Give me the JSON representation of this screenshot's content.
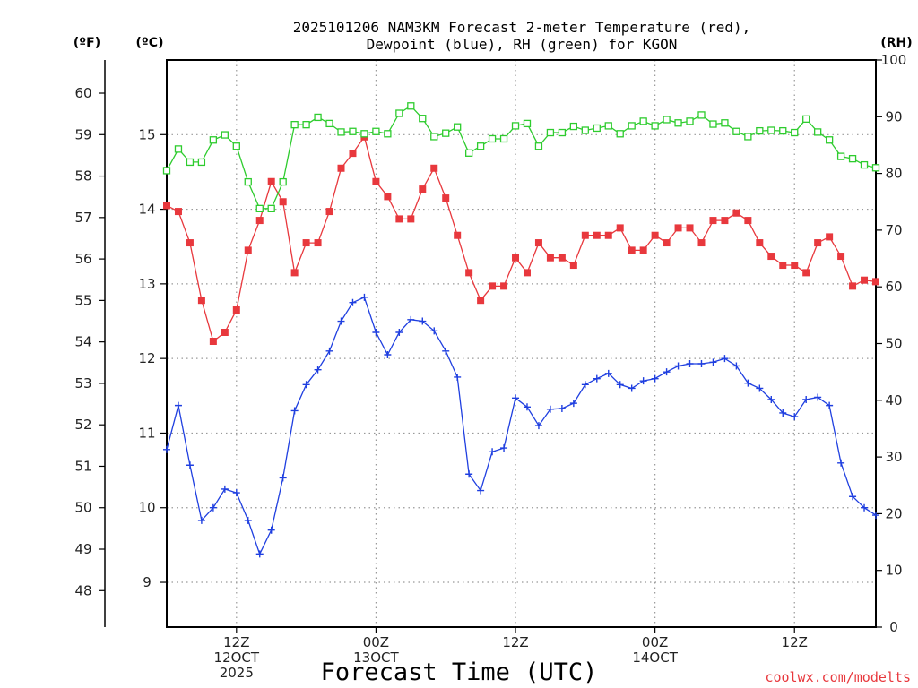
{
  "chart_data": {
    "type": "line",
    "title_line1": "2025101206 NAM3KM Forecast 2-meter Temperature (red),",
    "title_line2": "Dewpoint (blue), RH (green) for KGON",
    "xlabel": "Forecast Time (UTC)",
    "credit": "coolwx.com/modelts",
    "unit_f": "(ºF)",
    "unit_c": "(ºC)",
    "unit_rh": "(RH)",
    "x_unit": "forecast hour",
    "xlim": [
      0,
      61
    ],
    "ylim_c": [
      8.4,
      16.0
    ],
    "ylim_rh": [
      0,
      100
    ],
    "ylim_f": [
      47.12,
      60.8
    ],
    "yticks_f": [
      48,
      49,
      50,
      51,
      52,
      53,
      54,
      55,
      56,
      57,
      58,
      59,
      60
    ],
    "yticks_c": [
      9,
      10,
      11,
      12,
      13,
      14,
      15
    ],
    "yticks_rh": [
      0,
      10,
      20,
      30,
      40,
      50,
      60,
      70,
      80,
      90,
      100
    ],
    "xticks": [
      {
        "x": 6,
        "lines": [
          "12Z",
          "12OCT",
          "2025"
        ]
      },
      {
        "x": 18,
        "lines": [
          "00Z",
          "13OCT"
        ]
      },
      {
        "x": 30,
        "lines": [
          "12Z"
        ]
      },
      {
        "x": 42,
        "lines": [
          "00Z",
          "14OCT"
        ]
      },
      {
        "x": 54,
        "lines": [
          "12Z"
        ]
      }
    ],
    "colors": {
      "temperature": "#e8383d",
      "dewpoint": "#1f3fe0",
      "rh": "#2ecc2e",
      "grid": "#999999",
      "credit": "#e8383d"
    },
    "series": [
      {
        "name": "Temperature",
        "units": "C",
        "color": "#e8383d",
        "marker": "filled-square",
        "x": [
          0,
          1,
          2,
          3,
          4,
          5,
          6,
          7,
          8,
          9,
          10,
          11,
          12,
          13,
          14,
          15,
          16,
          17,
          18,
          19,
          20,
          21,
          22,
          23,
          24,
          25,
          26,
          27,
          28,
          29,
          30,
          31,
          32,
          33,
          34,
          35,
          36,
          37,
          38,
          39,
          40,
          41,
          42,
          43,
          44,
          45,
          46,
          47,
          48,
          49,
          50,
          51,
          52,
          53,
          54,
          55,
          56,
          57,
          58,
          59,
          60,
          61
        ],
        "values": [
          14.05,
          13.97,
          13.55,
          12.78,
          12.23,
          12.35,
          12.65,
          13.45,
          13.85,
          14.37,
          14.1,
          13.15,
          13.55,
          13.55,
          13.97,
          14.55,
          14.75,
          14.97,
          14.37,
          14.17,
          13.87,
          13.87,
          14.27,
          14.55,
          14.15,
          13.65,
          13.15,
          12.78,
          12.97,
          12.97,
          13.35,
          13.15,
          13.55,
          13.35,
          13.35,
          13.25,
          13.65,
          13.65,
          13.65,
          13.75,
          13.45,
          13.45,
          13.65,
          13.55,
          13.75,
          13.75,
          13.55,
          13.85,
          13.85,
          13.95,
          13.85,
          13.55,
          13.37,
          13.25,
          13.25,
          13.15,
          13.55,
          13.63,
          13.37,
          12.97,
          13.05,
          13.03
        ]
      },
      {
        "name": "Dewpoint",
        "units": "C",
        "color": "#1f3fe0",
        "marker": "plus",
        "x": [
          0,
          1,
          2,
          3,
          4,
          5,
          6,
          7,
          8,
          9,
          10,
          11,
          12,
          13,
          14,
          15,
          16,
          17,
          18,
          19,
          20,
          21,
          22,
          23,
          24,
          25,
          26,
          27,
          28,
          29,
          30,
          31,
          32,
          33,
          34,
          35,
          36,
          37,
          38,
          39,
          40,
          41,
          42,
          43,
          44,
          45,
          46,
          47,
          48,
          49,
          50,
          51,
          52,
          53,
          54,
          55,
          56,
          57,
          58,
          59,
          60,
          61
        ],
        "values": [
          10.78,
          11.37,
          10.57,
          9.83,
          10.0,
          10.25,
          10.2,
          9.83,
          9.38,
          9.7,
          10.4,
          11.3,
          11.65,
          11.85,
          12.1,
          12.5,
          12.75,
          12.82,
          12.35,
          12.05,
          12.35,
          12.52,
          12.5,
          12.37,
          12.1,
          11.75,
          10.45,
          10.23,
          10.75,
          10.8,
          11.47,
          11.35,
          11.1,
          11.32,
          11.33,
          11.4,
          11.65,
          11.73,
          11.8,
          11.65,
          11.6,
          11.7,
          11.73,
          11.82,
          11.9,
          11.93,
          11.93,
          11.95,
          12.0,
          11.9,
          11.67,
          11.6,
          11.45,
          11.27,
          11.22,
          11.45,
          11.48,
          11.37,
          10.6,
          10.15,
          10.0,
          9.9
        ]
      },
      {
        "name": "RH",
        "units": "%",
        "color": "#2ecc2e",
        "marker": "open-square",
        "x": [
          0,
          1,
          2,
          3,
          4,
          5,
          6,
          7,
          8,
          9,
          10,
          11,
          12,
          13,
          14,
          15,
          16,
          17,
          18,
          19,
          20,
          21,
          22,
          23,
          24,
          25,
          26,
          27,
          28,
          29,
          30,
          31,
          32,
          33,
          34,
          35,
          36,
          37,
          38,
          39,
          40,
          41,
          42,
          43,
          44,
          45,
          46,
          47,
          48,
          49,
          50,
          51,
          52,
          53,
          54,
          55,
          56,
          57,
          58,
          59,
          60,
          61
        ],
        "values": [
          80.5,
          84.3,
          82.0,
          82.0,
          85.9,
          86.8,
          84.8,
          78.5,
          73.8,
          73.8,
          78.5,
          88.6,
          88.6,
          89.9,
          88.8,
          87.3,
          87.4,
          87.0,
          87.4,
          87.0,
          90.6,
          91.9,
          89.7,
          86.5,
          87.1,
          88.2,
          83.6,
          84.8,
          86.1,
          86.1,
          88.4,
          88.8,
          84.8,
          87.2,
          87.2,
          88.3,
          87.6,
          88.0,
          88.4,
          87.0,
          88.4,
          89.2,
          88.4,
          89.5,
          88.9,
          89.2,
          90.3,
          88.7,
          88.9,
          87.4,
          86.5,
          87.5,
          87.6,
          87.5,
          87.2,
          89.6,
          87.3,
          85.9,
          83.0,
          82.6,
          81.5,
          81.0
        ]
      }
    ]
  }
}
